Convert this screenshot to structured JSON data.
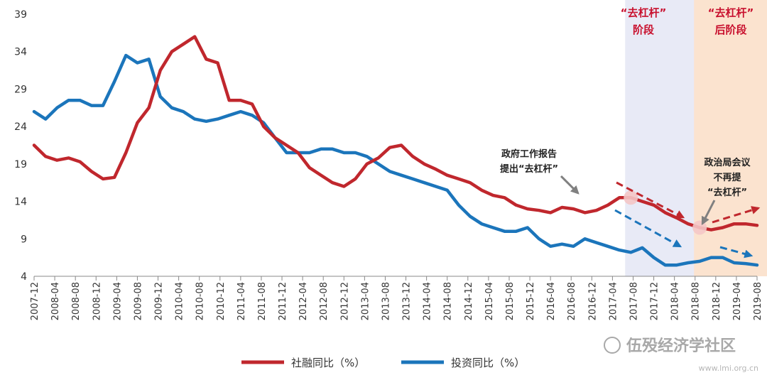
{
  "chart_data": {
    "type": "line",
    "ylim": [
      4,
      39
    ],
    "yticks": [
      4,
      9,
      14,
      19,
      24,
      29,
      34,
      39
    ],
    "xticks": [
      "2007-12",
      "2008-04",
      "2008-08",
      "2008-12",
      "2009-04",
      "2009-08",
      "2009-12",
      "2010-04",
      "2010-08",
      "2010-12",
      "2011-04",
      "2011-08",
      "2011-12",
      "2012-04",
      "2012-08",
      "2012-12",
      "2013-04",
      "2013-08",
      "2013-12",
      "2014-04",
      "2014-08",
      "2014-12",
      "2015-04",
      "2015-08",
      "2015-12",
      "2016-04",
      "2016-08",
      "2016-12",
      "2017-04",
      "2017-08",
      "2017-12",
      "2018-04",
      "2018-08",
      "2018-12",
      "2019-04",
      "2019-08"
    ],
    "series": [
      {
        "name": "社融同比（%）",
        "color": "#c0272d",
        "values": [
          21.5,
          20.0,
          19.5,
          19.8,
          19.3,
          18.0,
          17.0,
          17.2,
          20.5,
          24.5,
          26.5,
          31.5,
          34.0,
          35.0,
          36.0,
          33.0,
          32.5,
          27.5,
          27.5,
          27.0,
          24.0,
          22.5,
          21.5,
          20.5,
          18.5,
          17.5,
          16.5,
          16.0,
          17.0,
          19.0,
          19.8,
          21.2,
          21.5,
          20.0,
          19.0,
          18.3,
          17.5,
          17.0,
          16.5,
          15.5,
          14.8,
          14.5,
          13.5,
          13.0,
          12.8,
          12.5,
          13.2,
          13.0,
          12.5,
          12.8,
          13.5,
          14.5,
          14.5,
          14.0,
          13.5,
          12.5,
          11.8,
          11.0,
          10.5,
          10.2,
          10.5,
          11.0,
          11.0,
          10.8
        ]
      },
      {
        "name": "投资同比（%）",
        "color": "#1b75bb",
        "values": [
          26.0,
          25.0,
          26.5,
          27.5,
          27.5,
          26.8,
          26.8,
          30.0,
          33.5,
          32.5,
          33.0,
          28.0,
          26.5,
          26.0,
          25.0,
          24.7,
          25.0,
          25.5,
          26.0,
          25.5,
          24.5,
          22.5,
          20.5,
          20.5,
          20.5,
          21.0,
          21.0,
          20.5,
          20.5,
          20.0,
          19.0,
          18.0,
          17.5,
          17.0,
          16.5,
          16.0,
          15.5,
          13.5,
          12.0,
          11.0,
          10.5,
          10.0,
          10.0,
          10.5,
          9.0,
          8.0,
          8.3,
          8.0,
          9.0,
          8.5,
          8.0,
          7.5,
          7.2,
          7.8,
          6.5,
          5.5,
          5.5,
          5.8,
          6.0,
          6.5,
          6.5,
          5.8,
          5.7,
          5.5
        ]
      }
    ],
    "shaded_regions": [
      {
        "label": "“去杠杆”阶段",
        "from_index": 52,
        "to_index": 58,
        "color": "#e8eaf6"
      },
      {
        "label": "“去杠杆”后阶段",
        "from_index": 58,
        "to_index": 63,
        "color": "#fbe3cf"
      }
    ],
    "phase_labels": [
      {
        "line1": "“去杠杆”",
        "line2": "阶段"
      },
      {
        "line1": "“去杠杆”",
        "line2": "后阶段"
      }
    ],
    "annotations": [
      {
        "line1": "政府工作报告",
        "line2": "提出“去杠杆”"
      },
      {
        "line1": "政治局会议",
        "line2": "不再提",
        "line3": "“去杠杆”"
      }
    ],
    "legend_position": "bottom-center",
    "grid": false
  },
  "watermark": {
    "text": "伍殁经济学社区",
    "sub": "www.lmi.org.cn"
  }
}
